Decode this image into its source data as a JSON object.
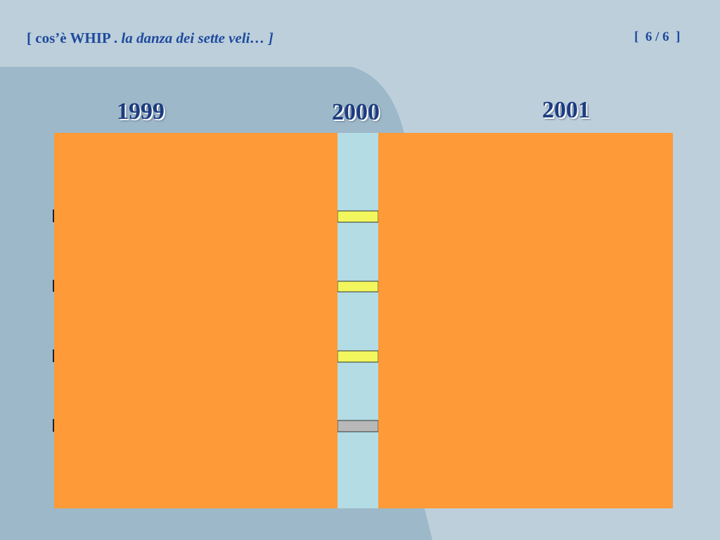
{
  "header": {
    "title": "[ cos’è WHIP . ",
    "subtitle": "la danza dei sette veli… ]",
    "page": "[  6 / 6  ]"
  },
  "years": [
    "1999",
    "2000",
    "2001"
  ]
}
